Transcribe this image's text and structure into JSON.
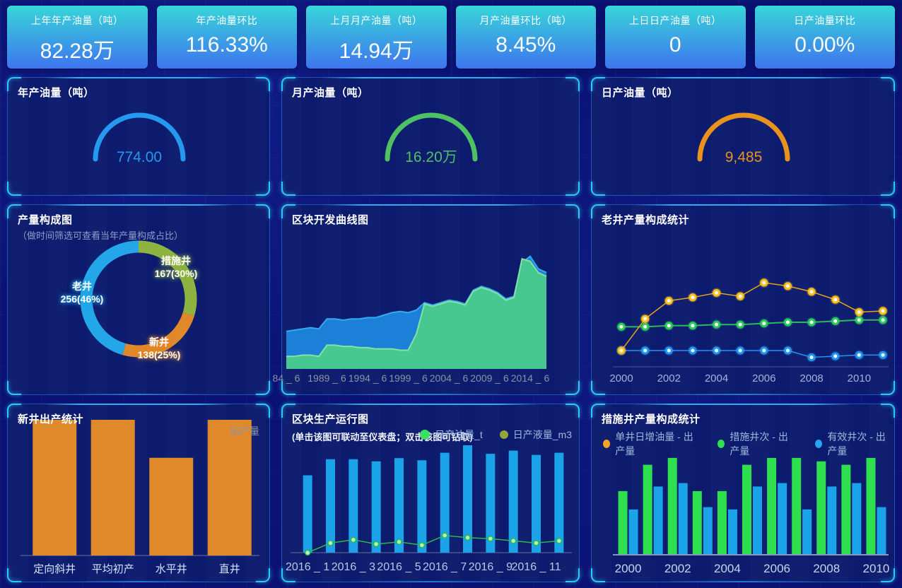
{
  "kpi_cards": [
    {
      "label": "上年年产油量（吨）",
      "value": "82.28万"
    },
    {
      "label": "年产油量环比",
      "value": "116.33%"
    },
    {
      "label": "上月月产油量（吨）",
      "value": "14.94万"
    },
    {
      "label": "月产油量环比（吨）",
      "value": "8.45%"
    },
    {
      "label": "上日日产油量（吨）",
      "value": "0"
    },
    {
      "label": "日产油量环比",
      "value": "0.00%"
    }
  ],
  "gauges": [
    {
      "title": "年产油量（吨）",
      "value": "774.00",
      "color": "#2599f0"
    },
    {
      "title": "月产油量（吨）",
      "value": "16.20万",
      "color": "#4ec162"
    },
    {
      "title": "日产油量（吨）",
      "value": "9,485",
      "color": "#e9931d"
    }
  ],
  "production_mix": {
    "title": "产量构成图",
    "subtitle": "（做时间筛选可查看当年产量构成占比）",
    "chart_data": {
      "type": "pie",
      "start_angle": "top, clockwise",
      "slices": [
        {
          "name": "措施井",
          "value": 167,
          "percent": 30,
          "value_label": "167(30%)",
          "color": "#8fb341"
        },
        {
          "name": "新井",
          "value": 138,
          "percent": 25,
          "value_label": "138(25%)",
          "color": "#e0892a"
        },
        {
          "name": "老井",
          "value": 256,
          "percent": 46,
          "value_label": "256(46%)",
          "color": "#23a7e8"
        }
      ]
    }
  },
  "block_curve": {
    "title": "区块开发曲线图",
    "chart_data": {
      "type": "area",
      "x_tick_labels": [
        "84 _ 6",
        "1989 _ 6",
        "1994 _ 6",
        "1999 _ 6",
        "2004 _ 6",
        "2009 _ 6",
        "2014 _ 6"
      ],
      "x_tick_indexes": [
        0,
        5,
        10,
        15,
        20,
        25,
        30
      ],
      "y_unit": "relative-%",
      "series": [
        {
          "name": "blue-area",
          "fill": "#1c80d9",
          "line": "#33aaee",
          "values": [
            30,
            31,
            32,
            33,
            32,
            40,
            40,
            39,
            40,
            40,
            41,
            41,
            43,
            45,
            46,
            45,
            47,
            53,
            51,
            53,
            55,
            54,
            52,
            63,
            66,
            64,
            61,
            56,
            58,
            85,
            90,
            80,
            77
          ]
        },
        {
          "name": "green-area",
          "fill": "#46c890",
          "line": "#82e2a6",
          "values": [
            10,
            10,
            11,
            11,
            10,
            19,
            19,
            18,
            18,
            17,
            17,
            16,
            16,
            16,
            15,
            15,
            28,
            52,
            50,
            52,
            54,
            53,
            51,
            62,
            65,
            63,
            60,
            55,
            57,
            88,
            86,
            77,
            74
          ]
        }
      ]
    }
  },
  "old_well": {
    "title": "老井产量构成统计",
    "chart_data": {
      "type": "line",
      "x": [
        2000,
        2001,
        2002,
        2003,
        2004,
        2005,
        2006,
        2007,
        2008,
        2009,
        2010,
        2011
      ],
      "x_tick_labels": [
        "2000",
        "2002",
        "2004",
        "2006",
        "2008",
        "2010"
      ],
      "x_tick_indexes": [
        0,
        2,
        4,
        6,
        8,
        10
      ],
      "y_unit": "relative-%",
      "series": [
        {
          "name": "orange-series",
          "line": "#e8a21a",
          "marker": "#ffc01e",
          "width": 1.5,
          "values": [
            10,
            38,
            54,
            57,
            61,
            58,
            70,
            67,
            62,
            55,
            44,
            45
          ]
        },
        {
          "name": "green-series",
          "line": "#2eb85c",
          "marker": "#2ecc5e",
          "width": 2,
          "values": [
            31,
            31,
            32,
            32,
            33,
            33,
            34,
            35,
            35,
            36,
            37,
            37
          ]
        },
        {
          "name": "blue-series",
          "line": "#2196f3",
          "marker": "#2196f3",
          "width": 1.5,
          "values": [
            10,
            10,
            10,
            10,
            10,
            10,
            10,
            10,
            4,
            5,
            6,
            6
          ]
        }
      ]
    }
  },
  "new_well": {
    "title": "新井出产统计",
    "legend": "出产量",
    "chart_data": {
      "type": "bar",
      "categories": [
        "定向斜井",
        "平均初产",
        "水平井",
        "直井"
      ],
      "values": [
        100,
        100,
        72,
        100
      ],
      "bar_color": "#e0892a",
      "y_unit": "relative-%"
    }
  },
  "block_run": {
    "title": "区块生产运行图",
    "subtitle": "(单击该图可联动至仪表盘；双击该图可钻取)",
    "legend": [
      {
        "label": "日产油量_t",
        "color": "#3ce060"
      },
      {
        "label": "日产液量_m3",
        "color": "#93a636"
      }
    ],
    "chart_data": {
      "type": "bar-line",
      "categories": [
        "2016 _ 1",
        "2016 _ 2",
        "2016 _ 3",
        "2016 _ 4",
        "2016 _ 5",
        "2016 _ 6",
        "2016 _ 7",
        "2016 _ 8",
        "2016 _ 9",
        "2016 _ 10",
        "2016 _ 11",
        "2016 _ 12"
      ],
      "x_tick_indexes": [
        0,
        2,
        4,
        6,
        8,
        10
      ],
      "y_unit": "relative-%",
      "bar_series": {
        "name": "日产液量_m3",
        "color": "#1ba3ea",
        "values": [
          72,
          87,
          87,
          85,
          88,
          86,
          93,
          100,
          92,
          95,
          91,
          93
        ]
      },
      "line_series": {
        "name": "日产油量_t",
        "color": "#2eb84e",
        "values": [
          0,
          9,
          12,
          8,
          10,
          7,
          16,
          14,
          13,
          11,
          9,
          11
        ]
      }
    }
  },
  "measure_well": {
    "title": "措施井产量构成统计",
    "legend": [
      {
        "label": "单井日增油量 - 出产量",
        "color": "#f5a623"
      },
      {
        "label": "措施井次 - 出产量",
        "color": "#2ee04e"
      },
      {
        "label": "有效井次 - 出产量",
        "color": "#29a6f0"
      }
    ],
    "chart_data": {
      "type": "grouped-bar",
      "categories": [
        2000,
        2001,
        2002,
        2003,
        2004,
        2005,
        2006,
        2007,
        2008,
        2009,
        2010
      ],
      "x_tick_labels": [
        "2000",
        "2002",
        "2004",
        "2006",
        "2008",
        "2010"
      ],
      "x_tick_indexes": [
        0,
        2,
        4,
        6,
        8,
        10
      ],
      "y_unit": "relative-%",
      "series": [
        {
          "name": "措施井次 - 出产量",
          "color": "#2ee04e",
          "values": [
            55,
            78,
            84,
            55,
            55,
            78,
            84,
            84,
            81,
            78,
            84
          ]
        },
        {
          "name": "有效井次 - 出产量",
          "color": "#1ba3ea",
          "values": [
            39,
            59,
            62,
            41,
            39,
            59,
            62,
            39,
            59,
            62,
            41
          ]
        },
        {
          "name": "单井日增油量 - 出产量",
          "color": "#f5a623",
          "values": []
        }
      ]
    }
  }
}
